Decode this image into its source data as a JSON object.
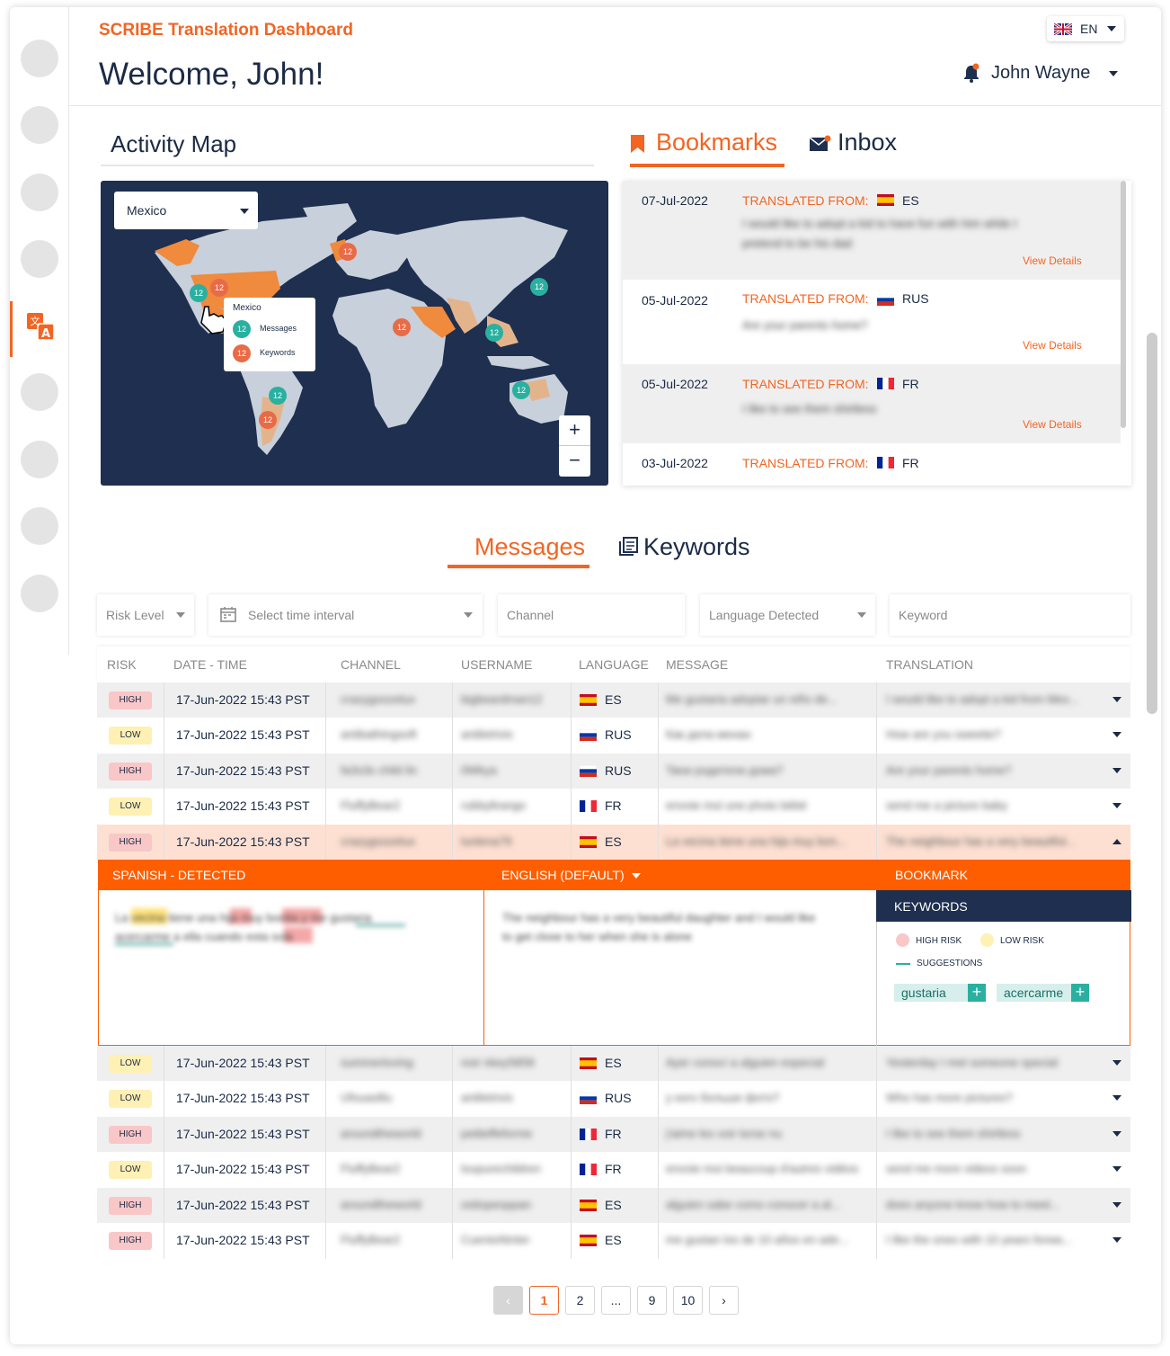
{
  "app": {
    "title": "SCRIBE Translation Dashboard",
    "welcome": "Welcome, John!",
    "language": "EN",
    "user_name": "John Wayne"
  },
  "activity_map": {
    "title": "Activity Map",
    "country_select": "Mexico",
    "tooltip": {
      "country": "Mexico",
      "messages_label": "Messages",
      "keywords_label": "Keywords",
      "messages_count": "12",
      "keywords_count": "12"
    },
    "marker_count": "12",
    "zoom_in": "+",
    "zoom_out": "−"
  },
  "right_tabs": {
    "bookmarks": "Bookmarks",
    "inbox": "Inbox"
  },
  "bookmarks": [
    {
      "date": "07-Jul-2022",
      "label": "TRANSLATED FROM:",
      "lang": "ES",
      "text1": "I would like to adopt a kid to have fun with him while I",
      "text2": "pretend to be his dad",
      "view": "View Details"
    },
    {
      "date": "05-Jul-2022",
      "label": "TRANSLATED FROM:",
      "lang": "RUS",
      "text1": "Are your parents home?",
      "text2": "",
      "view": "View Details"
    },
    {
      "date": "05-Jul-2022",
      "label": "TRANSLATED FROM:",
      "lang": "FR",
      "text1": "I like to see them shirtless",
      "text2": "",
      "view": "View Details"
    },
    {
      "date": "03-Jul-2022",
      "label": "TRANSLATED FROM:",
      "lang": "FR",
      "text1": "",
      "text2": "",
      "view": ""
    }
  ],
  "main_tabs": {
    "messages": "Messages",
    "keywords": "Keywords"
  },
  "filters": {
    "risk": "Risk Level",
    "time": "Select time interval",
    "channel": "Channel",
    "language": "Language Detected",
    "keyword": "Keyword"
  },
  "table": {
    "headers": [
      "RISK",
      "DATE - TIME",
      "CHANNEL",
      "USERNAME",
      "LANGUAGE",
      "MESSAGE",
      "TRANSLATION"
    ],
    "rows_top": [
      {
        "risk": "HIGH",
        "dt": "17-Jun-2022 15:43 PST",
        "channel": "crazygoozelux",
        "user": "bigbeardman12",
        "lang": "ES",
        "msg": "Me gustaria adoptar un niño de...",
        "tr": "I would like to adopt a kid from Mex..."
      },
      {
        "risk": "LOW",
        "dt": "17-Jun-2022 15:43 PST",
        "channel": "antibathingsoft",
        "user": "antiletrivis",
        "lang": "RUS",
        "msg": "Как дела менан",
        "tr": "How are you sweetie?"
      },
      {
        "risk": "HIGH",
        "dt": "17-Jun-2022 15:43 PST",
        "channel": "fa3s3s child lin",
        "user": "0Wkya",
        "lang": "RUS",
        "msg": "Твои родители дома?",
        "tr": "Are your parents home?"
      },
      {
        "risk": "LOW",
        "dt": "17-Jun-2022 15:43 PST",
        "channel": "FluffyBear2",
        "user": "rubbyltrango",
        "lang": "FR",
        "msg": "envoie moi une photo bébé",
        "tr": "send me a picture baby"
      },
      {
        "risk": "HIGH",
        "dt": "17-Jun-2022 15:43 PST",
        "channel": "crazygoozelux",
        "user": "lunlena79",
        "lang": "ES",
        "msg": "La vecina tiene una hija muy bon...",
        "tr": "The neighbour has a very beautiful..."
      }
    ],
    "rows_bottom": [
      {
        "risk": "LOW",
        "dt": "17-Jun-2022 15:43 PST",
        "channel": "summerloving",
        "user": "noir nkey5858",
        "lang": "ES",
        "msg": "Ayer conocí a alguien especial",
        "tr": "Yesterday I met someone special"
      },
      {
        "risk": "LOW",
        "dt": "17-Jun-2022 15:43 PST",
        "channel": "Ufouaslilu",
        "user": "antiletrivis",
        "lang": "RUS",
        "msg": "у кого больше фото?",
        "tr": "Who has more pictures?"
      },
      {
        "risk": "HIGH",
        "dt": "17-Jun-2022 15:43 PST",
        "channel": "aroundtheworld",
        "user": "petiteffeforme",
        "lang": "FR",
        "msg": "j'aime les voir torse nu",
        "tr": "I like to see them shirtless"
      },
      {
        "risk": "LOW",
        "dt": "17-Jun-2022 15:43 PST",
        "channel": "FluffyBear2",
        "user": "loupurechildren",
        "lang": "FR",
        "msg": "envoie moi beaucoup d'autres vidéos",
        "tr": "send me more videos soon"
      },
      {
        "risk": "HIGH",
        "dt": "17-Jun-2022 15:43 PST",
        "channel": "aroundtheworld",
        "user": "ostiopeoppan",
        "lang": "ES",
        "msg": "alguien sabe como conocer a al...",
        "tr": "does anyone know how to meet..."
      },
      {
        "risk": "HIGH",
        "dt": "17-Jun-2022 15:43 PST",
        "channel": "FluffyBear2",
        "user": "CuentoNinter",
        "lang": "ES",
        "msg": "me gustan los de 10 años en ade...",
        "tr": "I like the ones with 10 years forwa..."
      }
    ]
  },
  "expanded": {
    "src_label": "SPANISH - DETECTED",
    "tgt_label": "ENGLISH (DEFAULT)",
    "bookmark_label": "BOOKMARK",
    "keywords_label": "KEYWORDS",
    "src_line1": "La vecina tiene una hija muy bonita y me gustaria",
    "src_line2": "acercarme a ella cuando esta sola",
    "tgt_line1": "The neighbour has a very beautiful daughter and I would like",
    "tgt_line2": "to get close to her when she is alone",
    "legend_high": "HIGH RISK",
    "legend_low": "LOW RISK",
    "legend_sugg": "SUGGESTIONS",
    "suggestions": [
      "gustaria",
      "acercarme"
    ],
    "chip_add": "+"
  },
  "pagination": {
    "pages": [
      "1",
      "2",
      "...",
      "9",
      "10"
    ],
    "prev": "‹",
    "next": "›"
  },
  "colors": {
    "accent": "#f26522",
    "navy": "#1e2f4f",
    "teal": "#2ab0a0",
    "high": "#f9c7c7",
    "low": "#fff0b3"
  }
}
